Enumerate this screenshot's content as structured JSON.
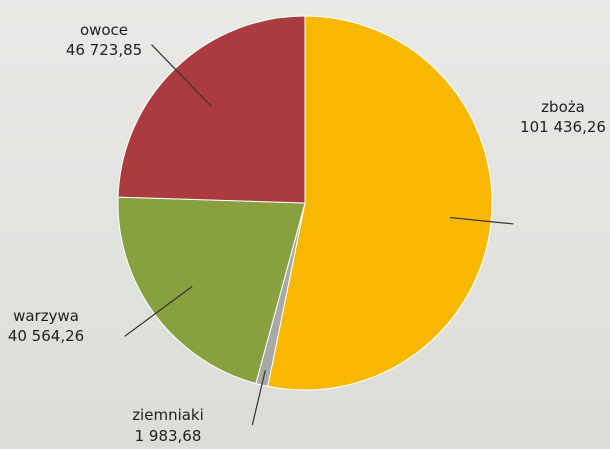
{
  "chart_data": {
    "type": "pie",
    "title": "",
    "slices": [
      {
        "label": "zboża",
        "value": 101436.26,
        "value_text": "101 436,26",
        "color": "#f8b800"
      },
      {
        "label": "ziemniaki",
        "value": 1983.68,
        "value_text": "1 983,68",
        "color": "#a8a8a8"
      },
      {
        "label": "warzywa",
        "value": 40564.26,
        "value_text": "40 564,26",
        "color": "#88a13e"
      },
      {
        "label": "owoce",
        "value": 46723.85,
        "value_text": "46 723,85",
        "color": "#ab3b3e"
      }
    ],
    "start_angle_deg": 0,
    "direction": "clockwise",
    "legend": "none",
    "labels": "outside with leader lines"
  }
}
